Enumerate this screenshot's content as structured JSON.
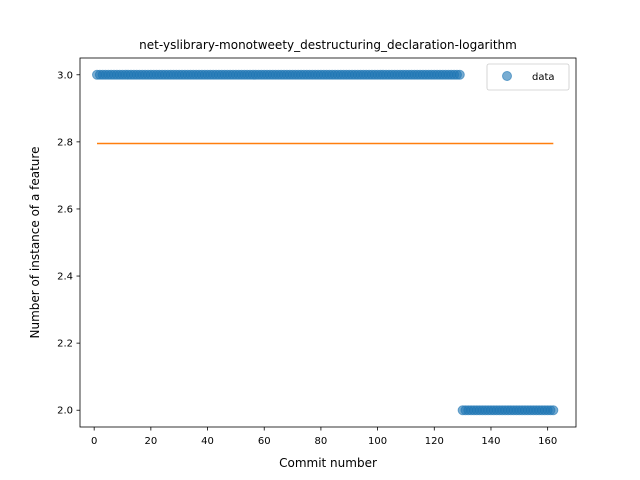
{
  "chart_data": {
    "type": "scatter",
    "title": "net-yslibrary-monotweety_destructuring_declaration-logarithm",
    "xlabel": "Commit number",
    "ylabel": "Number of instance of a feature",
    "xlim": [
      -5,
      170
    ],
    "ylim": [
      1.95,
      3.05
    ],
    "xticks": [
      0,
      20,
      40,
      60,
      80,
      100,
      120,
      140,
      160
    ],
    "yticks": [
      2.0,
      2.2,
      2.4,
      2.6,
      2.8,
      3.0
    ],
    "xtick_labels": [
      "0",
      "20",
      "40",
      "60",
      "80",
      "100",
      "120",
      "140",
      "160"
    ],
    "ytick_labels": [
      "2.0",
      "2.2",
      "2.4",
      "2.6",
      "2.8",
      "3.0"
    ],
    "grid": false,
    "legend_position": "top-right",
    "series": [
      {
        "name": "data",
        "kind": "scatter",
        "color": "#1f77b4",
        "segments": [
          {
            "x_from": 1,
            "x_to": 129,
            "y": 3.0
          },
          {
            "x_from": 130,
            "x_to": 162,
            "y": 2.0
          }
        ]
      },
      {
        "kind": "line",
        "color": "#ff7f0e",
        "x": [
          1,
          162
        ],
        "y": [
          2.795,
          2.795
        ]
      }
    ]
  }
}
